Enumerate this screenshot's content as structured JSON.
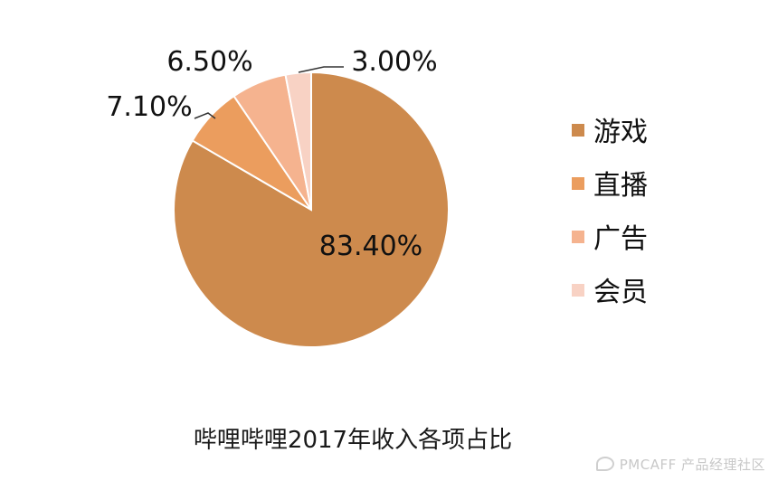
{
  "chart_data": {
    "type": "pie",
    "categories": [
      "游戏",
      "直播",
      "广告",
      "会员"
    ],
    "values": [
      83.4,
      7.1,
      6.5,
      3.0
    ],
    "value_labels": [
      "83.40%",
      "7.10%",
      "6.50%",
      "3.00%"
    ],
    "colors": [
      "#CD8A4D",
      "#EB9D5E",
      "#F5B38F",
      "#F8D2C4"
    ],
    "legend_position": "right",
    "start": "top, clockwise"
  },
  "caption": "哔哩哔哩2017年收入各项占比",
  "watermark": "PMCAFF 产品经理社区"
}
